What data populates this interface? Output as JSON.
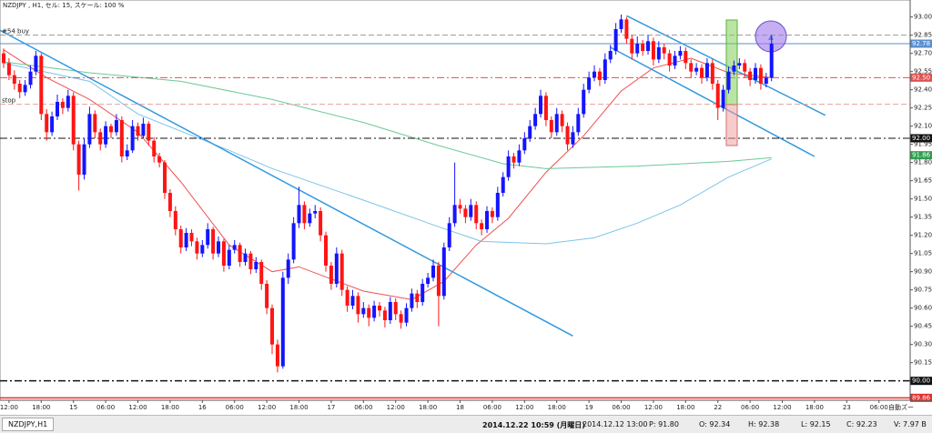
{
  "chart_data": {
    "type": "candlestick",
    "title": "NZDJPY , H1, セル: 15, スケール: 100 %",
    "up_color": "#1414ff",
    "down_color": "#ff1414",
    "xlim": [
      -0.68,
      168.81
    ],
    "ylim": [
      89.84,
      93.14
    ],
    "xticks": [
      {
        "value": 1,
        "label": "12:00"
      },
      {
        "value": 7,
        "label": "18:00"
      },
      {
        "value": 13,
        "label": "15"
      },
      {
        "value": 19,
        "label": "06:00"
      },
      {
        "value": 25,
        "label": "12:00"
      },
      {
        "value": 31,
        "label": "18:00"
      },
      {
        "value": 37,
        "label": "16"
      },
      {
        "value": 43,
        "label": "06:00"
      },
      {
        "value": 49,
        "label": "12:00"
      },
      {
        "value": 55,
        "label": "18:00"
      },
      {
        "value": 61,
        "label": "17"
      },
      {
        "value": 67,
        "label": "06:00"
      },
      {
        "value": 73,
        "label": "12:00"
      },
      {
        "value": 79,
        "label": "18:00"
      },
      {
        "value": 85,
        "label": "18"
      },
      {
        "value": 91,
        "label": "06:00"
      },
      {
        "value": 97,
        "label": "12:00"
      },
      {
        "value": 103,
        "label": "18:00"
      },
      {
        "value": 109,
        "label": "19"
      },
      {
        "value": 115,
        "label": "06:00"
      },
      {
        "value": 121,
        "label": "12:00"
      },
      {
        "value": 127,
        "label": "18:00"
      },
      {
        "value": 133,
        "label": "22"
      },
      {
        "value": 139,
        "label": "06:00"
      },
      {
        "value": 145,
        "label": "12:00"
      },
      {
        "value": 151,
        "label": "18:00"
      },
      {
        "value": 157,
        "label": "23"
      },
      {
        "value": 163,
        "label": "06:00"
      }
    ],
    "yticks": [
      {
        "value": 93,
        "label": "93.00"
      },
      92.85,
      {
        "value": 92.7,
        "label": "92.70"
      },
      92.55,
      {
        "value": 92.4,
        "label": "92.40"
      },
      92.25,
      {
        "value": 92.1,
        "label": "92.10"
      },
      91.95,
      {
        "value": 91.8,
        "label": "91.80"
      },
      91.65,
      {
        "value": 91.5,
        "label": "91.50"
      },
      91.35,
      {
        "value": 91.2,
        "label": "91.20"
      },
      91.05,
      {
        "value": 90.9,
        "label": "90.90"
      },
      90.75,
      {
        "value": 90.6,
        "label": "90.60"
      },
      90.45,
      {
        "value": 90.3,
        "label": "90.30"
      },
      90.15
    ],
    "candles": [
      [
        92.7,
        92.74,
        92.58,
        92.62
      ],
      [
        92.62,
        92.66,
        92.48,
        92.52
      ],
      [
        92.52,
        92.56,
        92.4,
        92.45
      ],
      [
        92.45,
        92.48,
        92.33,
        92.38
      ],
      [
        92.38,
        92.48,
        92.35,
        92.44
      ],
      [
        92.44,
        92.6,
        92.41,
        92.55
      ],
      [
        92.55,
        92.72,
        92.52,
        92.68
      ],
      [
        92.68,
        92.7,
        92.15,
        92.2
      ],
      [
        92.2,
        92.24,
        91.98,
        92.05
      ],
      [
        92.05,
        92.22,
        92.02,
        92.18
      ],
      [
        92.18,
        92.36,
        92.15,
        92.3
      ],
      [
        92.3,
        92.33,
        92.2,
        92.25
      ],
      [
        92.25,
        92.4,
        92.22,
        92.35
      ],
      [
        92.35,
        92.38,
        91.9,
        91.95
      ],
      [
        91.95,
        91.98,
        91.57,
        91.7
      ],
      [
        91.7,
        92.0,
        91.66,
        91.95
      ],
      [
        91.95,
        92.26,
        91.92,
        92.2
      ],
      [
        92.2,
        92.23,
        92.0,
        92.05
      ],
      [
        92.05,
        92.08,
        91.9,
        91.95
      ],
      [
        91.95,
        92.14,
        91.92,
        92.1
      ],
      [
        92.1,
        92.12,
        92.0,
        92.05
      ],
      [
        92.05,
        92.2,
        92.02,
        92.15
      ],
      [
        92.15,
        92.18,
        91.8,
        91.85
      ],
      [
        91.85,
        91.95,
        91.82,
        91.9
      ],
      [
        91.9,
        92.15,
        91.88,
        92.1
      ],
      [
        92.1,
        92.13,
        91.98,
        92.02
      ],
      [
        92.02,
        92.17,
        92.0,
        92.12
      ],
      [
        92.12,
        92.14,
        91.94,
        91.98
      ],
      [
        91.98,
        92.01,
        91.8,
        91.85
      ],
      [
        91.85,
        91.88,
        91.76,
        91.8
      ],
      [
        91.8,
        91.82,
        91.5,
        91.55
      ],
      [
        91.55,
        91.58,
        91.35,
        91.4
      ],
      [
        91.4,
        91.44,
        91.2,
        91.25
      ],
      [
        91.25,
        91.28,
        91.05,
        91.1
      ],
      [
        91.1,
        91.26,
        91.07,
        91.22
      ],
      [
        91.22,
        91.25,
        91.11,
        91.15
      ],
      [
        91.15,
        91.18,
        91.0,
        91.05
      ],
      [
        91.05,
        91.16,
        91.02,
        91.12
      ],
      [
        91.12,
        91.3,
        91.09,
        91.25
      ],
      [
        91.25,
        91.27,
        91.0,
        91.05
      ],
      [
        91.05,
        91.19,
        91.02,
        91.15
      ],
      [
        91.15,
        91.17,
        90.9,
        90.95
      ],
      [
        90.95,
        91.12,
        90.92,
        91.08
      ],
      [
        91.08,
        91.16,
        91.05,
        91.12
      ],
      [
        91.12,
        91.14,
        90.94,
        90.98
      ],
      [
        90.98,
        91.09,
        90.95,
        91.05
      ],
      [
        91.05,
        91.07,
        90.88,
        90.92
      ],
      [
        90.92,
        91.02,
        90.89,
        90.98
      ],
      [
        90.98,
        91.0,
        90.75,
        90.8
      ],
      [
        90.8,
        90.83,
        90.55,
        90.6
      ],
      [
        90.6,
        90.63,
        90.22,
        90.3
      ],
      [
        90.3,
        90.34,
        90.07,
        90.12
      ],
      [
        90.12,
        90.9,
        90.1,
        90.85
      ],
      [
        90.85,
        91.05,
        90.8,
        91.0
      ],
      [
        91.0,
        91.35,
        90.97,
        91.3
      ],
      [
        91.3,
        91.6,
        91.26,
        91.45
      ],
      [
        91.45,
        91.48,
        91.25,
        91.3
      ],
      [
        91.3,
        91.42,
        91.27,
        91.38
      ],
      [
        91.38,
        91.45,
        91.34,
        91.4
      ],
      [
        91.4,
        91.43,
        91.15,
        91.2
      ],
      [
        91.2,
        91.23,
        90.9,
        90.95
      ],
      [
        90.95,
        90.98,
        90.75,
        90.8
      ],
      [
        90.8,
        91.1,
        90.77,
        91.05
      ],
      [
        91.05,
        91.08,
        90.7,
        90.75
      ],
      [
        90.75,
        90.78,
        90.57,
        90.62
      ],
      [
        90.62,
        90.75,
        90.59,
        90.7
      ],
      [
        90.7,
        90.73,
        90.48,
        90.55
      ],
      [
        90.55,
        90.65,
        90.52,
        90.6
      ],
      [
        90.6,
        90.63,
        90.45,
        90.52
      ],
      [
        90.52,
        90.66,
        90.49,
        90.62
      ],
      [
        90.62,
        90.65,
        90.53,
        90.58
      ],
      [
        90.58,
        90.61,
        90.44,
        90.5
      ],
      [
        90.5,
        90.69,
        90.47,
        90.65
      ],
      [
        90.65,
        90.68,
        90.5,
        90.55
      ],
      [
        90.55,
        90.58,
        90.43,
        90.48
      ],
      [
        90.48,
        90.64,
        90.45,
        90.6
      ],
      [
        90.6,
        90.76,
        90.57,
        90.72
      ],
      [
        90.72,
        90.75,
        90.6,
        90.65
      ],
      [
        90.65,
        90.84,
        90.62,
        90.8
      ],
      [
        90.8,
        90.89,
        90.77,
        90.85
      ],
      [
        90.85,
        91.0,
        90.82,
        90.95
      ],
      [
        90.95,
        90.98,
        90.45,
        90.7
      ],
      [
        90.7,
        91.14,
        90.67,
        91.1
      ],
      [
        91.1,
        91.35,
        91.07,
        91.3
      ],
      [
        91.3,
        91.8,
        91.27,
        91.45
      ],
      [
        91.45,
        91.5,
        91.38,
        91.42
      ],
      [
        91.42,
        91.45,
        91.3,
        91.35
      ],
      [
        91.35,
        91.5,
        91.32,
        91.45
      ],
      [
        91.45,
        91.48,
        91.25,
        91.3
      ],
      [
        91.3,
        91.33,
        91.2,
        91.25
      ],
      [
        91.25,
        91.44,
        91.22,
        91.4
      ],
      [
        91.4,
        91.43,
        91.3,
        91.35
      ],
      [
        91.35,
        91.6,
        91.32,
        91.55
      ],
      [
        91.55,
        91.72,
        91.52,
        91.68
      ],
      [
        91.68,
        91.9,
        91.65,
        91.85
      ],
      [
        91.85,
        91.88,
        91.75,
        91.8
      ],
      [
        91.8,
        91.95,
        91.77,
        91.9
      ],
      [
        91.9,
        92.05,
        91.87,
        92.0
      ],
      [
        92.0,
        92.15,
        91.97,
        92.1
      ],
      [
        92.1,
        92.25,
        92.07,
        92.2
      ],
      [
        92.2,
        92.4,
        92.17,
        92.35
      ],
      [
        92.35,
        92.38,
        92.1,
        92.15
      ],
      [
        92.15,
        92.18,
        92.0,
        92.05
      ],
      [
        92.05,
        92.25,
        92.02,
        92.2
      ],
      [
        92.2,
        92.23,
        92.05,
        92.1
      ],
      [
        92.1,
        92.13,
        91.9,
        91.95
      ],
      [
        91.95,
        92.1,
        91.92,
        92.05
      ],
      [
        92.05,
        92.25,
        92.02,
        92.2
      ],
      [
        92.2,
        92.45,
        92.17,
        92.4
      ],
      [
        92.4,
        92.55,
        92.37,
        92.5
      ],
      [
        92.5,
        92.6,
        92.47,
        92.55
      ],
      [
        92.55,
        92.58,
        92.43,
        92.48
      ],
      [
        92.48,
        92.7,
        92.45,
        92.65
      ],
      [
        92.65,
        92.77,
        92.62,
        92.72
      ],
      [
        92.72,
        92.95,
        92.69,
        92.9
      ],
      [
        92.9,
        93.02,
        92.87,
        92.98
      ],
      [
        92.98,
        93.0,
        92.78,
        92.82
      ],
      [
        92.82,
        92.85,
        92.65,
        92.7
      ],
      [
        92.7,
        92.84,
        92.67,
        92.78
      ],
      [
        92.78,
        92.81,
        92.68,
        92.72
      ],
      [
        92.72,
        92.85,
        92.69,
        92.8
      ],
      [
        92.8,
        92.83,
        92.6,
        92.65
      ],
      [
        92.65,
        92.8,
        92.62,
        92.75
      ],
      [
        92.75,
        92.78,
        92.65,
        92.7
      ],
      [
        92.7,
        92.73,
        92.55,
        92.6
      ],
      [
        92.6,
        92.72,
        92.57,
        92.68
      ],
      [
        92.68,
        92.76,
        92.65,
        92.72
      ],
      [
        92.72,
        92.75,
        92.57,
        92.62
      ],
      [
        92.62,
        92.65,
        92.5,
        92.55
      ],
      [
        92.55,
        92.62,
        92.52,
        92.58
      ],
      [
        92.58,
        92.61,
        92.45,
        92.5
      ],
      [
        92.5,
        92.66,
        92.47,
        92.62
      ],
      [
        92.62,
        92.65,
        92.4,
        92.45
      ],
      [
        92.45,
        92.48,
        92.15,
        92.25
      ],
      [
        92.25,
        92.44,
        92.22,
        92.4
      ],
      [
        92.4,
        92.59,
        92.37,
        92.55
      ],
      [
        92.55,
        92.64,
        92.52,
        92.6
      ],
      [
        92.6,
        92.66,
        92.57,
        92.62
      ],
      [
        92.62,
        92.65,
        92.5,
        92.55
      ],
      [
        92.55,
        92.58,
        92.43,
        92.48
      ],
      [
        92.48,
        92.62,
        92.45,
        92.58
      ],
      [
        92.58,
        92.61,
        92.4,
        92.45
      ],
      [
        92.45,
        92.54,
        92.42,
        92.5
      ],
      [
        92.5,
        92.85,
        92.47,
        92.78
      ]
    ],
    "moving_averages": [
      {
        "color": "#f05050",
        "x": [
          0,
          8,
          16,
          25,
          33,
          42,
          50,
          55,
          67,
          76,
          82,
          88,
          94,
          101,
          108,
          115,
          121,
          128,
          135,
          143
        ],
        "values": [
          92.73,
          92.5,
          92.32,
          92.05,
          91.64,
          91.12,
          90.9,
          90.94,
          90.74,
          90.67,
          90.82,
          91.12,
          91.34,
          91.72,
          92.02,
          92.39,
          92.58,
          92.66,
          92.54,
          92.5
        ]
      },
      {
        "color": "#7cc4e8",
        "x": [
          0,
          16,
          25,
          42,
          50,
          67,
          81,
          89,
          101,
          110,
          118,
          126,
          135,
          143
        ],
        "values": [
          92.62,
          92.47,
          92.2,
          91.9,
          91.75,
          91.49,
          91.27,
          91.15,
          91.13,
          91.18,
          91.3,
          91.45,
          91.68,
          91.83
        ]
      },
      {
        "color": "#6cc898",
        "x": [
          0,
          16,
          33,
          50,
          67,
          81,
          93,
          101,
          118,
          135,
          143
        ],
        "values": [
          92.63,
          92.54,
          92.47,
          92.32,
          92.13,
          91.94,
          91.79,
          91.75,
          91.77,
          91.81,
          91.84
        ]
      }
    ],
    "trend_lines": [
      {
        "color": "#3399dd",
        "x": [
          -0.68,
          106
        ],
        "values": [
          92.89,
          90.37
        ]
      },
      {
        "color": "#3399dd",
        "x": [
          116,
          153
        ],
        "values": [
          93.01,
          92.19
        ]
      },
      {
        "color": "#3399dd",
        "x": [
          113,
          151
        ],
        "values": [
          92.75,
          91.85
        ]
      }
    ],
    "levels": [
      {
        "value": 92.85,
        "name": "#54 buy",
        "color": "#999999",
        "style": "dashed",
        "tagged": false
      },
      {
        "value": 92.78,
        "color": "#5a8fd0",
        "style": "solid",
        "tagged": true
      },
      {
        "value": 92.5,
        "label": "92.50",
        "color": "#e05050",
        "style": "dashdot",
        "tagged": true
      },
      {
        "value": 92.28,
        "name": "stop",
        "color": "#e8a0a0",
        "style": "dashed",
        "tagged": false
      },
      {
        "value": 92.0,
        "label": "92.00",
        "color": "#111111",
        "style": "dashdot",
        "tagged": true
      },
      {
        "value": 91.86,
        "color": "#2e9e4e",
        "style": "none",
        "tagged": true
      },
      {
        "value": 90.0,
        "label": "90.00",
        "color": "#111111",
        "style": "dashdot",
        "tagged": true
      },
      {
        "value": 89.86,
        "color": "#e03030",
        "style": "solid",
        "tagged": true
      }
    ]
  },
  "tab": "NZDJPY,H1",
  "scroll_button": "自動ズー",
  "status_bar": [
    "2014.12.22 10:59 (月曜日)",
    "2014.12.12 13:00",
    "P: 91.80",
    "O: 92.34",
    "H: 92.38",
    "L: 92.15",
    "C: 92.23",
    "V: 7.97 B"
  ]
}
